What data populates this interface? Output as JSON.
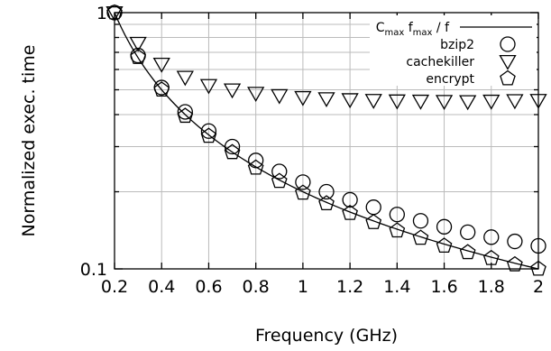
{
  "chart_data": {
    "type": "scatter",
    "title": "",
    "xlabel": "Frequency (GHz)",
    "ylabel": "Normalized exec. time",
    "x_scale": "linear",
    "y_scale": "log",
    "xlim": [
      0.2,
      2.0
    ],
    "ylim": [
      0.1,
      1.0
    ],
    "x_ticks": [
      {
        "value": 0.2,
        "label": "0.2"
      },
      {
        "value": 0.4,
        "label": "0.4"
      },
      {
        "value": 0.6,
        "label": "0.6"
      },
      {
        "value": 0.8,
        "label": "0.8"
      },
      {
        "value": 1.0,
        "label": "1"
      },
      {
        "value": 1.2,
        "label": "1.2"
      },
      {
        "value": 1.4,
        "label": "1.4"
      },
      {
        "value": 1.6,
        "label": "1.6"
      },
      {
        "value": 1.8,
        "label": "1.8"
      },
      {
        "value": 2.0,
        "label": "2"
      }
    ],
    "y_ticks": [
      {
        "value": 0.1,
        "label": "0.1"
      },
      {
        "value": 1.0,
        "label": "1"
      }
    ],
    "grid": true,
    "legend_position": "top-right",
    "model_line": {
      "type": "line",
      "label_main": "C",
      "label_sub1": "max",
      "label_mid": " f",
      "label_sub2": "max",
      "label_tail": " / f",
      "x_start": 0.2,
      "x_end": 2.0,
      "note": ""
    },
    "x": [
      0.2,
      0.3,
      0.4,
      0.5,
      0.6,
      0.7,
      0.8,
      0.9,
      1.0,
      1.1,
      1.2,
      1.3,
      1.4,
      1.5,
      1.6,
      1.7,
      1.8,
      1.9,
      2.0
    ],
    "series": [
      {
        "name": "bzip2",
        "marker": "circle",
        "values": [
          1.0,
          0.68,
          0.51,
          0.41,
          0.345,
          0.3,
          0.265,
          0.24,
          0.218,
          0.2,
          0.186,
          0.174,
          0.163,
          0.154,
          0.146,
          0.139,
          0.133,
          0.128,
          0.123
        ]
      },
      {
        "name": "cachekiller",
        "marker": "triangle-down",
        "values": [
          1.0,
          0.76,
          0.63,
          0.56,
          0.52,
          0.5,
          0.485,
          0.475,
          0.467,
          0.462,
          0.458,
          0.455,
          0.453,
          0.452,
          0.451,
          0.45,
          0.452,
          0.454,
          0.455
        ]
      },
      {
        "name": "encrypt",
        "marker": "pentagon",
        "values": [
          1.0,
          0.67,
          0.5,
          0.395,
          0.33,
          0.285,
          0.248,
          0.22,
          0.198,
          0.18,
          0.165,
          0.152,
          0.141,
          0.132,
          0.123,
          0.116,
          0.11,
          0.104,
          0.1
        ]
      }
    ]
  }
}
